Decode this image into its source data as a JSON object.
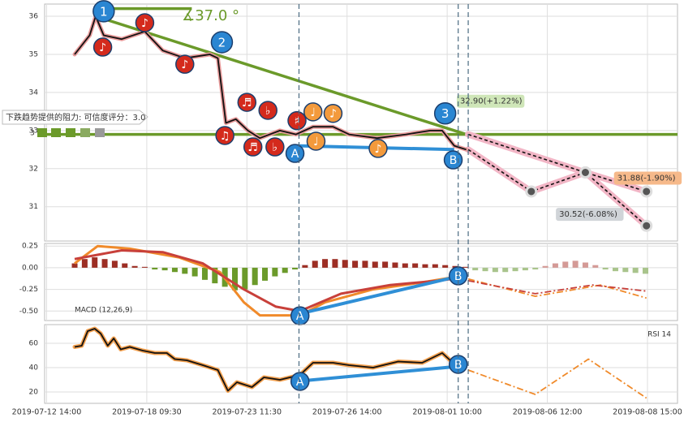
{
  "tooltip": {
    "text": "下跌趋势提供的阻力: 可信度评分：3.0",
    "score": "3"
  },
  "vlines": [
    2.52,
    4.11,
    4.21
  ],
  "chart_data": [
    {
      "type": "line",
      "xlim": [
        -0.02,
        6.3
      ],
      "ylim": [
        30.1,
        36.32
      ],
      "yticks": [
        31,
        32,
        33,
        34,
        35,
        36
      ],
      "grid": true,
      "series": [
        {
          "role": "trend",
          "color": "#6b9a2a",
          "x": [
            0.49,
            4.19
          ],
          "values": [
            36.0,
            32.9
          ]
        },
        {
          "role": "trend",
          "color": "#6b9a2a",
          "x": [
            0.49,
            1.45
          ],
          "values": [
            36.2,
            36.2
          ]
        },
        {
          "role": "trend",
          "color": "#6b9a2a",
          "x": [
            -0.02,
            6.3
          ],
          "values": [
            32.9,
            32.9
          ]
        },
        {
          "role": "support",
          "color": "#2f8fd6",
          "x": [
            2.49,
            4.07
          ],
          "values": [
            32.6,
            32.5
          ]
        },
        {
          "role": "forecast",
          "color": "#111111",
          "halo": "#f2b6c6",
          "x": [
            4.21,
            4.84,
            5.38,
            5.99
          ],
          "values": [
            32.5,
            31.4,
            31.9,
            30.5
          ]
        },
        {
          "role": "forecast",
          "color": "#111111",
          "halo": "#f2b6c6",
          "x": [
            4.21,
            5.38,
            5.99
          ],
          "values": [
            32.9,
            31.9,
            31.4
          ]
        },
        {
          "role": "price",
          "color": "#111111",
          "halo": "#e79a9a",
          "x": [
            0.28,
            0.43,
            0.49,
            0.57,
            0.75,
            0.98,
            1.16,
            1.38,
            1.63,
            1.71,
            1.79,
            1.89,
            2.01,
            2.13,
            2.33,
            2.49,
            2.66,
            2.86,
            3.02,
            3.3,
            3.59,
            3.83,
            3.95,
            4.07,
            4.19
          ],
          "values": [
            35.0,
            35.5,
            36.0,
            35.5,
            35.4,
            35.6,
            35.1,
            34.9,
            35.0,
            34.9,
            33.2,
            33.3,
            33.0,
            32.8,
            33.0,
            32.9,
            33.1,
            33.1,
            32.9,
            32.8,
            32.9,
            33.0,
            33.0,
            32.6,
            32.5
          ]
        }
      ],
      "markers": [
        {
          "label": "♪",
          "x": 0.98,
          "y": 35.83,
          "color": "#d42a1c"
        },
        {
          "label": "♪",
          "x": 0.56,
          "y": 35.19,
          "color": "#d42a1c"
        },
        {
          "label": "♪",
          "x": 1.38,
          "y": 34.74,
          "color": "#d42a1c"
        },
        {
          "label": "♫",
          "x": 1.78,
          "y": 32.87,
          "color": "#d42a1c"
        },
        {
          "label": "♬",
          "x": 2.0,
          "y": 33.74,
          "color": "#d42a1c"
        },
        {
          "label": "♭",
          "x": 2.21,
          "y": 33.53,
          "color": "#d42a1c"
        },
        {
          "label": "♬",
          "x": 2.06,
          "y": 32.57,
          "color": "#d42a1c"
        },
        {
          "label": "♭",
          "x": 2.28,
          "y": 32.57,
          "color": "#d42a1c"
        },
        {
          "label": "♯",
          "x": 2.5,
          "y": 33.26,
          "color": "#d42a1c"
        },
        {
          "label": "♩",
          "x": 2.66,
          "y": 33.49,
          "color": "#f39a3c"
        },
        {
          "label": "♪",
          "x": 2.86,
          "y": 33.45,
          "color": "#f39a3c"
        },
        {
          "label": "♩",
          "x": 2.69,
          "y": 32.72,
          "color": "#f39a3c"
        },
        {
          "label": "♪",
          "x": 3.31,
          "y": 32.53,
          "color": "#f39a3c"
        },
        {
          "label": "1",
          "x": 0.57,
          "y": 36.13,
          "color": "#2a86d2"
        },
        {
          "label": "2",
          "x": 1.75,
          "y": 35.32,
          "color": "#2a86d2"
        },
        {
          "label": "3",
          "x": 3.98,
          "y": 33.45,
          "color": "#2a86d2"
        },
        {
          "label": "A",
          "x": 2.48,
          "y": 32.4,
          "color": "#2a86d2"
        },
        {
          "label": "B",
          "x": 4.06,
          "y": 32.23,
          "color": "#2a86d2"
        }
      ],
      "annotations": [
        {
          "text": "∡37.0 °",
          "x": 1.35,
          "y": 36.0,
          "color": "#6b9a2a",
          "box": null
        },
        {
          "text": "32.90(+1.22%)",
          "x": 4.12,
          "y": 33.77,
          "color": "#333333",
          "box": "#cfe6b8"
        },
        {
          "text": "31.88(-1.90%)",
          "x": 5.69,
          "y": 31.75,
          "color": "#333333",
          "box": "#f6b98a"
        },
        {
          "text": "30.52(-6.08%)",
          "x": 5.11,
          "y": 30.8,
          "color": "#333333",
          "box": "#d0d4d8"
        }
      ]
    },
    {
      "type": "line",
      "label": "MACD (12,26,9)",
      "xlim": [
        -0.02,
        6.3
      ],
      "ylim": [
        -0.61,
        0.28
      ],
      "grid": true,
      "yticks": [
        0.25,
        {
          "value": 0,
          "label": "0.00"
        },
        -0.25,
        {
          "value": -0.5,
          "label": "-0.50"
        }
      ],
      "series": [
        {
          "role": "bar",
          "color": "#9c2e24",
          "negative_color": "#6b9a2a",
          "x": [
            0.28,
            0.38,
            0.48,
            0.58,
            0.68,
            0.78,
            0.88,
            0.98,
            1.08,
            1.18,
            1.28,
            1.38,
            1.48,
            1.58,
            1.68,
            1.78,
            1.88,
            1.98,
            2.08,
            2.18,
            2.28,
            2.38,
            2.48,
            2.58,
            2.68,
            2.78,
            2.88,
            2.98,
            3.08,
            3.18,
            3.28,
            3.38,
            3.48,
            3.58,
            3.68,
            3.78,
            3.88,
            3.98,
            4.08,
            4.18
          ],
          "values": [
            0.05,
            0.1,
            0.12,
            0.1,
            0.08,
            0.05,
            0.02,
            0.01,
            -0.02,
            -0.03,
            -0.05,
            -0.07,
            -0.1,
            -0.14,
            -0.18,
            -0.22,
            -0.26,
            -0.25,
            -0.2,
            -0.15,
            -0.1,
            -0.06,
            -0.02,
            0.03,
            0.08,
            0.1,
            0.1,
            0.09,
            0.08,
            0.08,
            0.07,
            0.07,
            0.06,
            0.05,
            0.05,
            0.04,
            0.04,
            0.03,
            0.02,
            0.01
          ]
        },
        {
          "role": "bar",
          "color": "#d49a96",
          "negative_color": "#a9c48c",
          "x": [
            4.28,
            4.38,
            4.48,
            4.58,
            4.68,
            4.78,
            4.88,
            4.98,
            5.08,
            5.18,
            5.28,
            5.38,
            5.48,
            5.58,
            5.68,
            5.78,
            5.88,
            5.98
          ],
          "values": [
            -0.03,
            -0.04,
            -0.05,
            -0.05,
            -0.04,
            -0.03,
            -0.02,
            0.02,
            0.05,
            0.07,
            0.08,
            0.06,
            0.03,
            -0.02,
            -0.04,
            -0.05,
            -0.06,
            -0.07
          ]
        },
        {
          "role": "signal",
          "color": "#f08a2a",
          "x": [
            0.28,
            0.51,
            0.83,
            1.32,
            1.73,
            1.97,
            2.13,
            2.53,
            2.78,
            3.26,
            3.75,
            4.11
          ],
          "values": [
            0.05,
            0.25,
            0.22,
            0.12,
            -0.05,
            -0.4,
            -0.55,
            -0.55,
            -0.4,
            -0.25,
            -0.17,
            -0.1
          ]
        },
        {
          "role": "macd",
          "color": "#c8403a",
          "x": [
            0.28,
            0.75,
            1.16,
            1.56,
            1.97,
            2.29,
            2.53,
            2.94,
            3.43,
            3.91,
            4.11
          ],
          "values": [
            0.1,
            0.2,
            0.18,
            0.05,
            -0.25,
            -0.45,
            -0.5,
            -0.3,
            -0.2,
            -0.15,
            -0.12
          ]
        },
        {
          "role": "support",
          "color": "#2f8fd6",
          "x": [
            2.53,
            4.11
          ],
          "values": [
            -0.53,
            -0.1
          ]
        },
        {
          "role": "dashdot",
          "color": "#f08a2a",
          "x": [
            4.21,
            4.88,
            5.53,
            5.99
          ],
          "values": [
            -0.13,
            -0.33,
            -0.2,
            -0.35
          ]
        },
        {
          "role": "dashdot",
          "color": "#c8403a",
          "x": [
            4.21,
            4.88,
            5.45,
            5.99
          ],
          "values": [
            -0.15,
            -0.3,
            -0.2,
            -0.27
          ]
        }
      ],
      "markers": [
        {
          "label": "A",
          "x": 2.53,
          "y": -0.555,
          "color": "#2a86d2"
        },
        {
          "label": "B",
          "x": 4.11,
          "y": -0.094,
          "color": "#2a86d2"
        }
      ]
    },
    {
      "type": "line",
      "label": "RSI 14",
      "xlim": [
        -0.02,
        6.3
      ],
      "ylim": [
        10.7,
        75.3
      ],
      "yticks": [
        20,
        40,
        60
      ],
      "grid": true,
      "xticks": [
        {
          "value": 0,
          "label": "2019-07-12 14:00"
        },
        {
          "value": 1,
          "label": "2019-07-18 09:30"
        },
        {
          "value": 2,
          "label": "2019-07-23 11:30"
        },
        {
          "value": 3,
          "label": "2019-07-26 14:00"
        },
        {
          "value": 4,
          "label": "2019-08-01 10:00"
        },
        {
          "value": 5,
          "label": "2019-08-06 12:00"
        },
        {
          "value": 6,
          "label": "2019-08-08 15:00"
        }
      ],
      "series": [
        {
          "role": "support",
          "color": "#2f8fd6",
          "x": [
            2.53,
            4.11
          ],
          "values": [
            29,
            41
          ]
        },
        {
          "role": "price",
          "color": "#111111",
          "halo": "#f3a04e",
          "x": [
            0.28,
            0.35,
            0.41,
            0.48,
            0.54,
            0.61,
            0.67,
            0.74,
            0.83,
            0.96,
            1.08,
            1.2,
            1.28,
            1.4,
            1.56,
            1.71,
            1.81,
            1.9,
            2.05,
            2.17,
            2.33,
            2.53,
            2.66,
            2.86,
            3.02,
            3.26,
            3.51,
            3.75,
            3.95,
            4.11
          ],
          "values": [
            57,
            58,
            70,
            72,
            68,
            58,
            64,
            55,
            57,
            54,
            52,
            52,
            47,
            46,
            42,
            38,
            21,
            28,
            24,
            32,
            30,
            34,
            44,
            44,
            42,
            40,
            45,
            44,
            52,
            40
          ]
        },
        {
          "role": "dashdot",
          "color": "#f08a2a",
          "x": [
            4.21,
            4.88,
            5.41,
            5.99
          ],
          "values": [
            38,
            18,
            47,
            15
          ]
        }
      ],
      "markers": [
        {
          "label": "A",
          "x": 2.53,
          "y": 28.7,
          "color": "#2a86d2"
        },
        {
          "label": "B",
          "x": 4.11,
          "y": 42.7,
          "color": "#2a86d2"
        }
      ]
    }
  ]
}
